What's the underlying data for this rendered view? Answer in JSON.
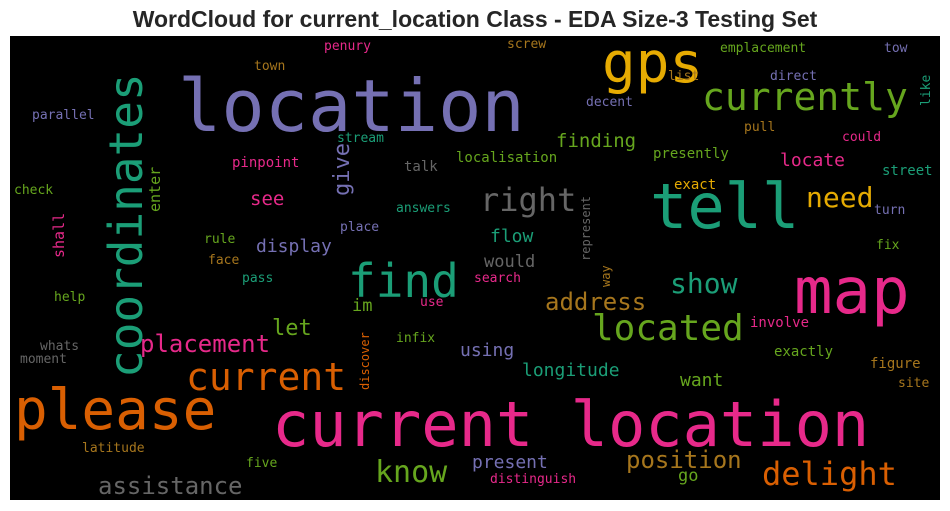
{
  "title": "WordCloud for current_location Class - EDA Size-3 Testing Set",
  "palette": {
    "background": "#000000",
    "pink": "#e7298a",
    "orange": "#d95f02",
    "teal": "#1b9e77",
    "purple": "#7570b3",
    "green": "#66a61e",
    "yellow": "#e6ab02",
    "brown": "#a6761d",
    "gray": "#666666"
  },
  "words": {
    "current_location": "current location",
    "location": "location",
    "map": "map",
    "please": "please",
    "tell": "tell",
    "coordinates": "coordinates",
    "find": "find",
    "gps": "gps",
    "current": "current",
    "currently": "currently",
    "located": "located",
    "delight": "delight",
    "know": "know",
    "right": "right",
    "position": "position",
    "show": "show",
    "need": "need",
    "assistance": "assistance",
    "address": "address",
    "placement": "placement",
    "give": "give",
    "let": "let",
    "finding": "finding",
    "longitude": "longitude",
    "locate": "locate",
    "present": "present",
    "using": "using",
    "want": "want",
    "display": "display",
    "see": "see",
    "flow": "flow",
    "would": "would",
    "im": "im",
    "go": "go",
    "enter": "enter",
    "shall": "shall",
    "figure": "figure",
    "exactly": "exactly",
    "involve": "involve",
    "exact": "exact",
    "street": "street",
    "decent": "decent",
    "localisation": "localisation",
    "presently": "presently",
    "pinpoint": "pinpoint",
    "stream": "stream",
    "talk": "talk",
    "answers": "answers",
    "place": "place",
    "rule": "rule",
    "face": "face",
    "pass": "pass",
    "search": "search",
    "use": "use",
    "infix": "infix",
    "discover": "discover",
    "represent": "represent",
    "way": "way",
    "emplacement": "emplacement",
    "screw": "screw",
    "penury": "penury",
    "town": "town",
    "list": "list",
    "direct": "direct",
    "tow": "tow",
    "like": "like",
    "pull": "pull",
    "could": "could",
    "turn": "turn",
    "fix": "fix",
    "site": "site",
    "parallel": "parallel",
    "check": "check",
    "help": "help",
    "whats": "whats",
    "moment": "moment",
    "latitude": "latitude",
    "five": "five",
    "distinguish": "distinguish"
  }
}
